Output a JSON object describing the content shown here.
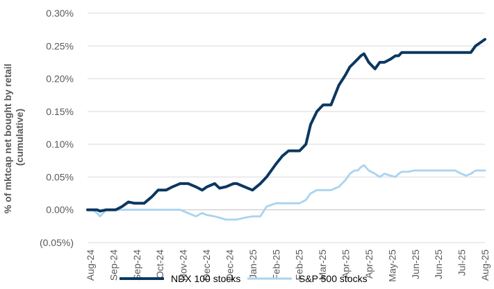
{
  "chart_data": {
    "type": "line",
    "title": "",
    "ylabel": "% of mktcap net bought by retail (cumulative)",
    "ylabel_lines": [
      "% of mktcap net bought by retail",
      "(cumulative)"
    ],
    "xlabel": "",
    "ylim": [
      -0.05,
      0.3
    ],
    "y_ticks": [
      -0.05,
      0.0,
      0.05,
      0.1,
      0.15,
      0.2,
      0.25,
      0.3
    ],
    "y_tick_labels": [
      "(0.05%)",
      "0.00%",
      "0.05%",
      "0.10%",
      "0.15%",
      "0.20%",
      "0.25%",
      "0.30%"
    ],
    "x_tick_labels": [
      "Aug-24",
      "Sep-24",
      "Sep-24",
      "Oct-24",
      "Nov-24",
      "Dec-24",
      "Dec-24",
      "Jan-25",
      "Feb-25",
      "Feb-25",
      "Mar-25",
      "Apr-25",
      "Apr-25",
      "May-25",
      "Jun-25",
      "Jun-25",
      "Jul-25",
      "Aug-25"
    ],
    "grid": "horizontal",
    "legend_position": "bottom",
    "x": [
      0,
      3,
      6,
      8,
      12,
      18,
      22,
      26,
      30,
      36,
      41,
      45,
      50,
      54,
      59,
      64,
      69,
      73,
      76,
      81,
      84,
      88,
      93,
      95,
      100,
      105,
      110,
      114,
      120,
      124,
      128,
      135,
      139,
      142,
      146,
      150,
      155,
      160,
      164,
      167,
      170,
      172,
      174,
      176,
      179,
      183,
      186,
      189,
      193,
      196,
      198,
      200,
      204,
      208,
      212,
      214,
      216,
      219,
      221,
      224,
      227,
      230,
      234,
      238,
      241,
      244,
      247,
      250,
      253
    ],
    "series": [
      {
        "name": "NDX 100 stocks",
        "color": "#0b3761",
        "values": [
          0.0,
          0.0,
          0.0,
          -0.002,
          0.0,
          0.0,
          0.005,
          0.012,
          0.01,
          0.01,
          0.02,
          0.03,
          0.03,
          0.035,
          0.04,
          0.04,
          0.035,
          0.03,
          0.035,
          0.04,
          0.033,
          0.035,
          0.04,
          0.04,
          0.035,
          0.03,
          0.04,
          0.05,
          0.07,
          0.082,
          0.09,
          0.09,
          0.1,
          0.13,
          0.15,
          0.16,
          0.16,
          0.19,
          0.205,
          0.218,
          0.225,
          0.23,
          0.235,
          0.238,
          0.225,
          0.215,
          0.225,
          0.225,
          0.23,
          0.235,
          0.235,
          0.24,
          0.24,
          0.24,
          0.24,
          0.24,
          0.24,
          0.24,
          0.24,
          0.24,
          0.24,
          0.24,
          0.24,
          0.24,
          0.24,
          0.24,
          0.25,
          0.255,
          0.26
        ]
      },
      {
        "name": "S&P 500 stocks",
        "color": "#a9d3ef",
        "values": [
          0.0,
          0.0,
          -0.005,
          -0.01,
          0.0,
          0.0,
          0.0,
          0.0,
          0.0,
          0.0,
          0.0,
          0.0,
          0.0,
          0.0,
          0.0,
          -0.005,
          -0.01,
          -0.005,
          -0.008,
          -0.01,
          -0.012,
          -0.015,
          -0.015,
          -0.015,
          -0.012,
          -0.01,
          -0.01,
          0.005,
          0.01,
          0.01,
          0.01,
          0.01,
          0.015,
          0.025,
          0.03,
          0.03,
          0.03,
          0.035,
          0.045,
          0.055,
          0.06,
          0.06,
          0.065,
          0.068,
          0.06,
          0.055,
          0.05,
          0.055,
          0.052,
          0.05,
          0.055,
          0.058,
          0.058,
          0.06,
          0.06,
          0.06,
          0.06,
          0.06,
          0.06,
          0.06,
          0.06,
          0.06,
          0.06,
          0.055,
          0.052,
          0.055,
          0.06,
          0.06,
          0.06
        ]
      }
    ]
  }
}
